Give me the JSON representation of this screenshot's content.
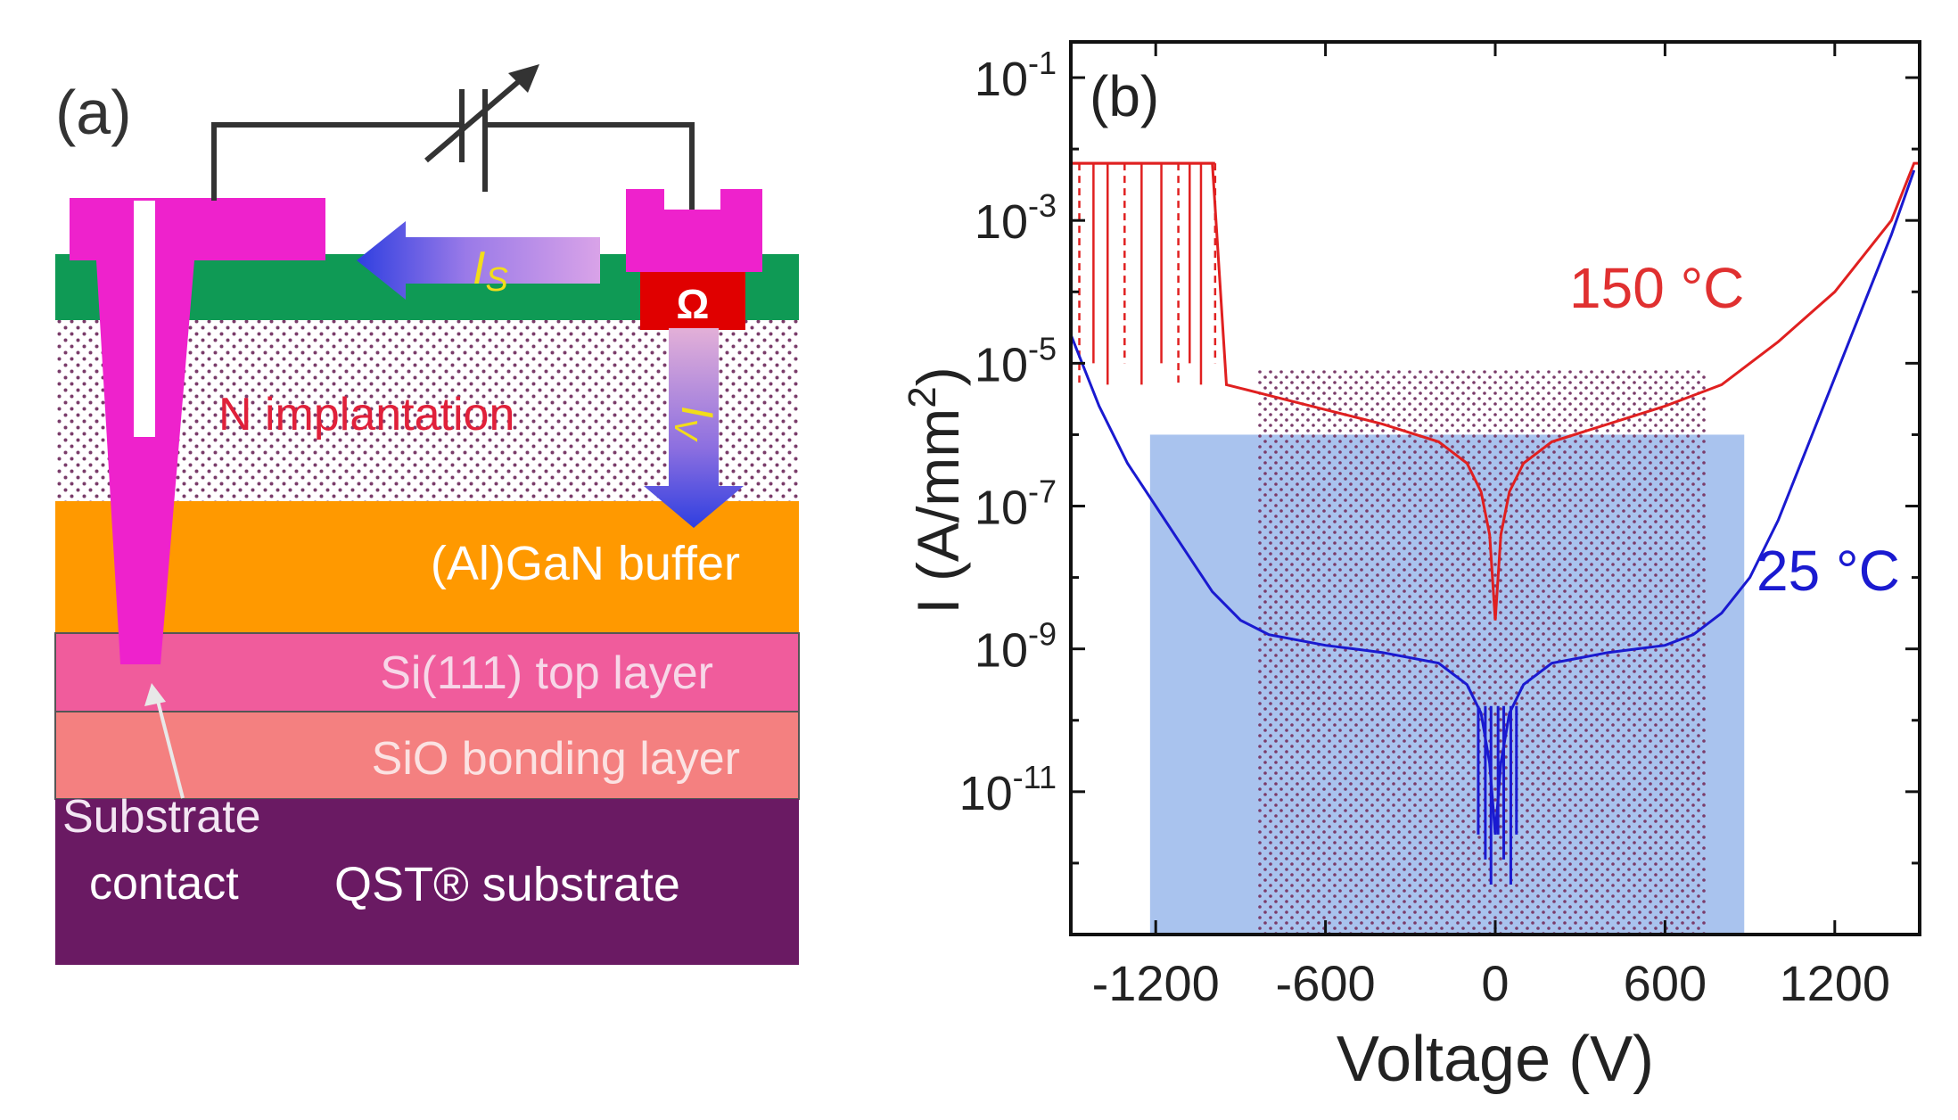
{
  "panel_a": {
    "label": "(a)",
    "layers": {
      "n_implant": "N implantation",
      "buffer": "(Al)GaN buffer",
      "top_layer": "Si(111) top layer",
      "bonding": "SiO bonding layer",
      "substrate": "QST® substrate"
    },
    "omega_symbol": "Ω",
    "current_labels": {
      "surface_main": "I",
      "surface_sub": "S",
      "vertical_main": "I",
      "vertical_sub": "V"
    },
    "substrate_contact": {
      "line1": "Substrate",
      "line2": "contact"
    },
    "colors": {
      "pink_metal": "#ee22cc",
      "passivation": "#0f9a55",
      "buffer": "#ff9900",
      "top_layer": "#f05c9c",
      "bonding": "#f48080",
      "substrate": "#6a1a63",
      "resistor": "#e00000"
    }
  },
  "chart_data": {
    "type": "line",
    "panel_label": "(b)",
    "xlabel": "Voltage (V)",
    "ylabel_main": "I (A/mm",
    "ylabel_sup": "2",
    "ylabel_tail": ")",
    "xlim": [
      -1500,
      1500
    ],
    "ylim_log10": [
      -13,
      -0.5
    ],
    "xticks": [
      {
        "value": -1200,
        "label": "-1200"
      },
      {
        "value": -600,
        "label": "-600"
      },
      {
        "value": 0,
        "label": "0"
      },
      {
        "value": 600,
        "label": "600"
      },
      {
        "value": 1200,
        "label": "1200"
      }
    ],
    "yticks": [
      {
        "exp": -1,
        "base": "10",
        "sup": "-1"
      },
      {
        "exp": -3,
        "base": "10",
        "sup": "-3"
      },
      {
        "exp": -5,
        "base": "10",
        "sup": "-5"
      },
      {
        "exp": -7,
        "base": "10",
        "sup": "-7"
      },
      {
        "exp": -9,
        "base": "10",
        "sup": "-9"
      },
      {
        "exp": -11,
        "base": "10",
        "sup": "-11"
      }
    ],
    "regions": [
      {
        "name": "blue-shaded-region",
        "x": [
          -1220,
          880
        ],
        "y_log10": [
          -13,
          -6
        ],
        "color": "#a9c3ee"
      },
      {
        "name": "dotted-region",
        "x": [
          -840,
          750
        ],
        "y_log10": [
          -13,
          -5.1
        ]
      }
    ],
    "series": [
      {
        "name": "150 °C",
        "label": "150 °C",
        "color": "#e02020",
        "x": [
          -1500,
          -1400,
          -1300,
          -1200,
          -1100,
          -1000,
          -950,
          -900,
          -800,
          -600,
          -400,
          -200,
          -100,
          -50,
          -20,
          0,
          20,
          50,
          100,
          200,
          400,
          600,
          800,
          1000,
          1200,
          1400,
          1480,
          1500
        ],
        "log": [
          -2.2,
          -2.2,
          -2.2,
          -2.2,
          -2.2,
          -2.2,
          -5.3,
          -5.35,
          -5.45,
          -5.65,
          -5.85,
          -6.1,
          -6.4,
          -6.8,
          -7.4,
          -8.6,
          -7.4,
          -6.8,
          -6.4,
          -6.1,
          -5.85,
          -5.6,
          -5.3,
          -4.7,
          -4.0,
          -3.0,
          -2.2,
          -2.2
        ],
        "breakdown_x": [
          -1470,
          -1420,
          -1370,
          -1310,
          -1250,
          -1180,
          -1120,
          -1080,
          -1040,
          -990
        ]
      },
      {
        "name": "25 °C",
        "label": "25 °C",
        "color": "#1a1ad0",
        "x": [
          -1500,
          -1400,
          -1300,
          -1200,
          -1100,
          -1000,
          -900,
          -800,
          -600,
          -400,
          -200,
          -100,
          -50,
          -20,
          0,
          20,
          50,
          100,
          200,
          400,
          600,
          700,
          800,
          900,
          1000,
          1100,
          1200,
          1300,
          1400,
          1480
        ],
        "log": [
          -4.6,
          -5.6,
          -6.4,
          -7.0,
          -7.6,
          -8.2,
          -8.6,
          -8.8,
          -8.95,
          -9.05,
          -9.2,
          -9.5,
          -9.9,
          -10.6,
          -11.6,
          -10.6,
          -9.9,
          -9.5,
          -9.2,
          -9.05,
          -8.95,
          -8.8,
          -8.5,
          -8.0,
          -7.2,
          -6.2,
          -5.2,
          -4.2,
          -3.2,
          -2.3
        ]
      }
    ]
  }
}
